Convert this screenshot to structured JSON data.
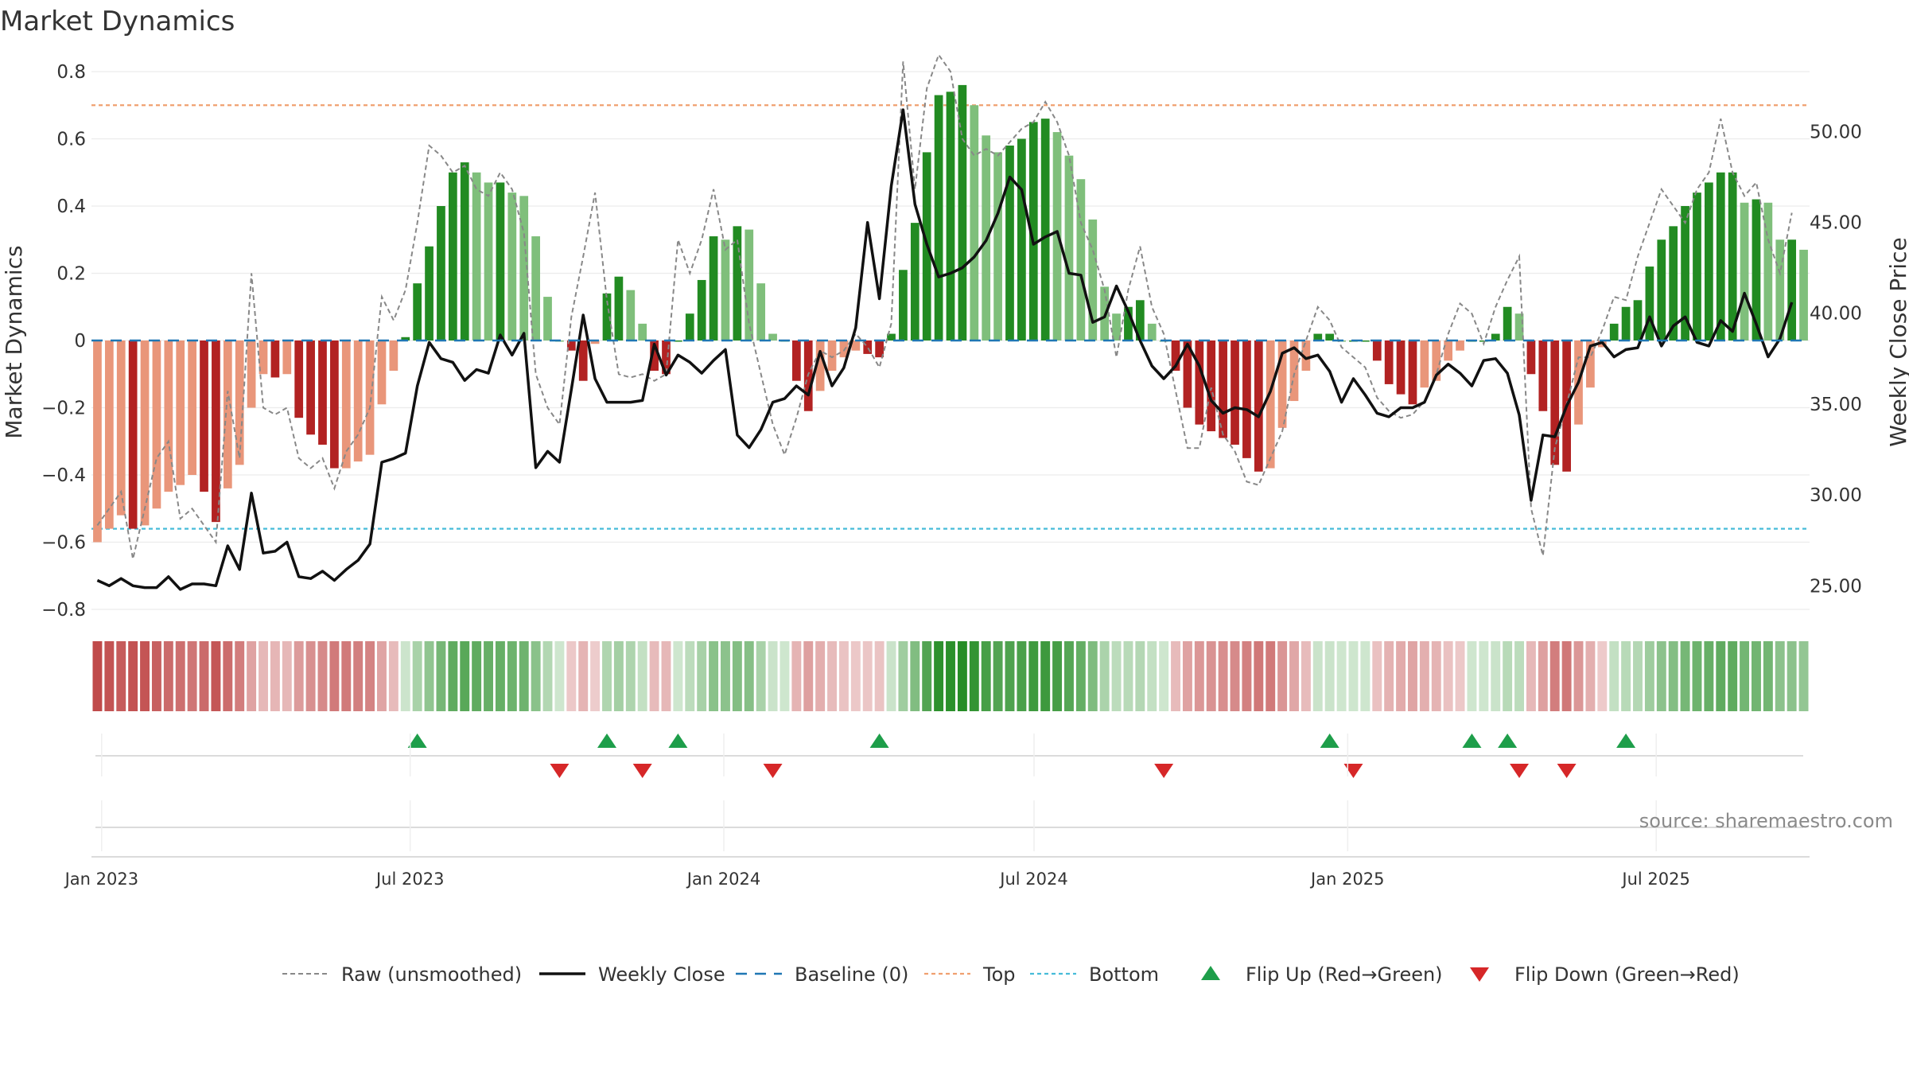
{
  "chart_data": {
    "type": "bar",
    "title": "Market Dynamics",
    "ylabel_left": "Market Dynamics",
    "ylabel_right": "Weekly Close Price",
    "ylim_left": [
      -0.8,
      0.8
    ],
    "ylim_right": [
      23.7,
      53.3
    ],
    "yticks_left": [
      "0.8",
      "0.6",
      "0.4",
      "0.2",
      "0",
      "−0.2",
      "−0.4",
      "−0.6",
      "−0.8"
    ],
    "yticks_right": [
      "50.00",
      "45.00",
      "40.00",
      "35.00",
      "30.00",
      "25.00"
    ],
    "x_start": "2022-12-26",
    "x_end": "2025-09-29",
    "xticks": [
      "Jan 2023",
      "Jul 2023",
      "Jan 2024",
      "Jul 2024",
      "Jan 2025",
      "Jul 2025"
    ],
    "top_level": 0.7,
    "bottom_level": -0.56,
    "baseline": 0,
    "source": "source: sharemaestro.com",
    "colors": {
      "red_strong": "#b22222",
      "red_light": "#e9967a",
      "green_strong": "#228b22",
      "green_light": "#7fbf7b",
      "close_line": "#111111",
      "raw_line": "#888888",
      "top": "#f0a070",
      "bottom": "#46bcd9",
      "baseline": "#1f77b4",
      "flip_up": "#1e9e4a",
      "flip_down": "#d62728"
    },
    "legend": [
      {
        "key": "raw",
        "label": "Raw (unsmoothed)"
      },
      {
        "key": "close",
        "label": "Weekly Close"
      },
      {
        "key": "baseline",
        "label": "Baseline (0)"
      },
      {
        "key": "top",
        "label": "Top"
      },
      {
        "key": "bottom",
        "label": "Bottom"
      },
      {
        "key": "flip_up",
        "label": "Flip Up (Red→Green)"
      },
      {
        "key": "flip_down",
        "label": "Flip Down (Green→Red)"
      }
    ],
    "series": {
      "momentum": [
        -0.6,
        -0.56,
        -0.52,
        -0.56,
        -0.55,
        -0.5,
        -0.45,
        -0.43,
        -0.4,
        -0.45,
        -0.54,
        -0.44,
        -0.37,
        -0.2,
        -0.1,
        -0.11,
        -0.1,
        -0.23,
        -0.28,
        -0.31,
        -0.38,
        -0.38,
        -0.36,
        -0.34,
        -0.19,
        -0.09,
        0.01,
        0.17,
        0.28,
        0.4,
        0.5,
        0.53,
        0.5,
        0.47,
        0.47,
        0.44,
        0.43,
        0.31,
        0.13,
        0,
        -0.03,
        -0.12,
        -0.01,
        0.14,
        0.19,
        0.15,
        0.05,
        -0.09,
        -0.1,
        0,
        0.08,
        0.18,
        0.31,
        0.3,
        0.34,
        0.33,
        0.17,
        0.02,
        0,
        -0.12,
        -0.21,
        -0.15,
        -0.09,
        -0.05,
        -0.03,
        -0.04,
        -0.05,
        0.02,
        0.21,
        0.35,
        0.56,
        0.73,
        0.74,
        0.76,
        0.7,
        0.61,
        0.56,
        0.58,
        0.6,
        0.65,
        0.66,
        0.62,
        0.55,
        0.48,
        0.36,
        0.16,
        0.08,
        0.1,
        0.12,
        0.05,
        0,
        -0.09,
        -0.2,
        -0.25,
        -0.27,
        -0.29,
        -0.31,
        -0.35,
        -0.39,
        -0.38,
        -0.26,
        -0.18,
        -0.09,
        0.02,
        0.02,
        0,
        0,
        0,
        -0.06,
        -0.13,
        -0.16,
        -0.19,
        -0.14,
        -0.12,
        -0.06,
        -0.03,
        0,
        0,
        0.02,
        0.1,
        0.08,
        -0.1,
        -0.21,
        -0.37,
        -0.39,
        -0.25,
        -0.14,
        -0.02,
        0.05,
        0.1,
        0.12,
        0.22,
        0.3,
        0.34,
        0.4,
        0.44,
        0.47,
        0.5,
        0.5,
        0.41,
        0.42,
        0.41,
        0.3,
        0.3,
        0.27
      ],
      "raw": [
        -0.55,
        -0.5,
        -0.45,
        -0.65,
        -0.5,
        -0.35,
        -0.3,
        -0.53,
        -0.5,
        -0.55,
        -0.6,
        -0.15,
        -0.35,
        0.2,
        -0.2,
        -0.22,
        -0.2,
        -0.35,
        -0.38,
        -0.35,
        -0.44,
        -0.33,
        -0.28,
        -0.2,
        0.13,
        0.06,
        0.15,
        0.35,
        0.58,
        0.55,
        0.5,
        0.52,
        0.45,
        0.43,
        0.5,
        0.45,
        0.32,
        -0.1,
        -0.2,
        -0.25,
        0.07,
        0.25,
        0.44,
        0.12,
        -0.1,
        -0.11,
        -0.1,
        -0.12,
        -0.1,
        0.3,
        0.2,
        0.3,
        0.45,
        0.27,
        0.3,
        0.05,
        -0.1,
        -0.25,
        -0.34,
        -0.23,
        -0.1,
        -0.03,
        -0.05,
        -0.03,
        0.02,
        -0.02,
        -0.08,
        0.05,
        0.83,
        0.45,
        0.75,
        0.85,
        0.8,
        0.6,
        0.55,
        0.57,
        0.55,
        0.59,
        0.63,
        0.65,
        0.71,
        0.65,
        0.55,
        0.35,
        0.27,
        0.15,
        -0.05,
        0.15,
        0.28,
        0.1,
        0.02,
        -0.15,
        -0.32,
        -0.32,
        -0.14,
        -0.28,
        -0.33,
        -0.42,
        -0.43,
        -0.35,
        -0.27,
        -0.1,
        0,
        0.1,
        0.06,
        -0.02,
        -0.05,
        -0.08,
        -0.17,
        -0.21,
        -0.23,
        -0.22,
        -0.18,
        -0.1,
        0.02,
        0.11,
        0.08,
        -0.01,
        0.1,
        0.18,
        0.25,
        -0.5,
        -0.64,
        -0.32,
        -0.19,
        -0.05,
        -0.05,
        0.03,
        0.13,
        0.12,
        0.25,
        0.35,
        0.45,
        0.4,
        0.35,
        0.45,
        0.5,
        0.66,
        0.5,
        0.43,
        0.47,
        0.3,
        0.2,
        0.38
      ],
      "close": [
        25.3,
        25,
        25.4,
        25,
        24.9,
        24.9,
        25.5,
        24.8,
        25.1,
        25.1,
        25.0,
        27.2,
        25.9,
        30.1,
        26.8,
        26.9,
        27.4,
        25.5,
        25.4,
        25.8,
        25.3,
        25.9,
        26.4,
        27.3,
        31.8,
        32.0,
        32.3,
        36.0,
        38.4,
        37.5,
        37.3,
        36.3,
        36.9,
        36.7,
        38.8,
        37.7,
        38.9,
        31.5,
        32.4,
        31.8,
        35.8,
        39.9,
        36.4,
        35.1,
        35.1,
        35.1,
        35.2,
        38.3,
        36.6,
        37.7,
        37.3,
        36.7,
        37.4,
        38.0,
        33.3,
        32.6,
        33.6,
        35.1,
        35.3,
        36.0,
        35.5,
        37.9,
        36.0,
        37.0,
        39.2,
        45.0,
        40.8,
        47.0,
        51.2,
        46.0,
        43.8,
        42.0,
        42.2,
        42.5,
        43.1,
        44.0,
        45.5,
        47.5,
        46.8,
        43.8,
        44.2,
        44.5,
        42.2,
        42.1,
        39.5,
        39.8,
        41.5,
        40.1,
        38.5,
        37.1,
        36.4,
        37.1,
        38.3,
        37.1,
        35.2,
        34.5,
        34.8,
        34.7,
        34.3,
        35.7,
        37.8,
        38.1,
        37.5,
        37.7,
        36.8,
        35.1,
        36.4,
        35.5,
        34.5,
        34.3,
        34.8,
        34.8,
        35.1,
        36.6,
        37.2,
        36.7,
        36.0,
        37.4,
        37.5,
        36.7,
        34.4,
        29.7,
        33.3,
        33.2,
        34.9,
        36.2,
        38.2,
        38.4,
        37.6,
        38.0,
        38.1,
        39.8,
        38.2,
        39.3,
        39.8,
        38.4,
        38.2,
        39.6,
        39.0,
        41.1,
        39.4,
        37.6,
        38.6,
        40.6
      ],
      "flip_up": [
        27,
        43,
        49,
        66,
        104,
        116,
        119,
        129
      ],
      "flip_down": [
        39,
        46,
        57,
        90,
        106,
        120,
        124
      ]
    }
  }
}
